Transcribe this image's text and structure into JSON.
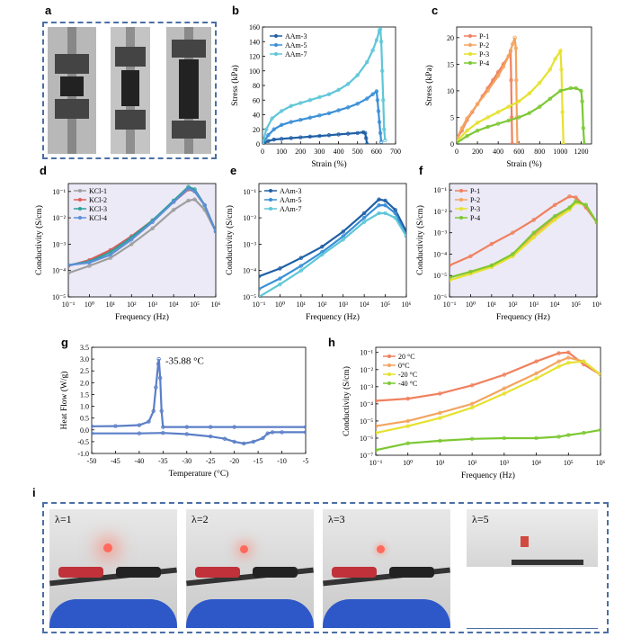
{
  "panel_labels": {
    "a": "a",
    "b": "b",
    "c": "c",
    "d": "d",
    "e": "e",
    "f": "f",
    "g": "g",
    "h": "h",
    "i": "i"
  },
  "photos_i": {
    "labels": [
      "λ=1",
      "λ=2",
      "λ=3",
      "λ=5"
    ]
  },
  "colors": {
    "dash_border": "#4a6fa5"
  },
  "chart_data": [
    {
      "id": "b",
      "type": "line",
      "xlabel": "Strain (%)",
      "ylabel": "Stress (kPa)",
      "xlim": [
        0,
        700
      ],
      "ylim": [
        0,
        160
      ],
      "xticks": [
        0,
        100,
        200,
        300,
        400,
        500,
        600,
        700
      ],
      "yticks": [
        0,
        20,
        40,
        60,
        80,
        100,
        120,
        140,
        160
      ],
      "legend_position": "top-left",
      "series": [
        {
          "name": "AAm-3",
          "color": "#1f5fa6",
          "x": [
            0,
            30,
            60,
            100,
            150,
            200,
            250,
            300,
            350,
            400,
            450,
            500,
            530,
            540,
            545,
            550
          ],
          "y": [
            0,
            4,
            6,
            7,
            8,
            9,
            10,
            11,
            12,
            13,
            14,
            15,
            16,
            15,
            8,
            0
          ]
        },
        {
          "name": "AAm-5",
          "color": "#3a8fd6",
          "x": [
            0,
            30,
            60,
            100,
            150,
            200,
            250,
            300,
            350,
            400,
            450,
            500,
            550,
            580,
            600,
            605,
            610,
            615,
            620,
            625
          ],
          "y": [
            0,
            12,
            20,
            26,
            30,
            33,
            36,
            39,
            42,
            46,
            50,
            55,
            62,
            68,
            72,
            60,
            45,
            30,
            15,
            3
          ]
        },
        {
          "name": "AAm-7",
          "color": "#5ec6d8",
          "x": [
            0,
            20,
            50,
            100,
            150,
            200,
            250,
            300,
            350,
            400,
            450,
            500,
            550,
            580,
            600,
            615,
            620,
            625,
            630,
            635,
            640,
            645
          ],
          "y": [
            0,
            20,
            35,
            45,
            52,
            56,
            60,
            64,
            68,
            74,
            82,
            94,
            112,
            128,
            142,
            155,
            157,
            140,
            100,
            60,
            20,
            5
          ]
        }
      ]
    },
    {
      "id": "c",
      "type": "line",
      "xlabel": "Strain (%)",
      "ylabel": "Stress (kPa)",
      "xlim": [
        0,
        1300
      ],
      "ylim": [
        0,
        22
      ],
      "xticks": [
        0,
        200,
        400,
        600,
        800,
        1000,
        1200
      ],
      "yticks": [
        0,
        5,
        10,
        15,
        20
      ],
      "legend_position": "top-left",
      "series": [
        {
          "name": "P-1",
          "color": "#f0805e",
          "x": [
            0,
            50,
            100,
            150,
            200,
            250,
            300,
            350,
            400,
            450,
            500,
            520,
            525,
            530,
            535
          ],
          "y": [
            1,
            2.5,
            4.5,
            6,
            7.5,
            9,
            10.5,
            12,
            13.5,
            15,
            16.5,
            17.5,
            12,
            5,
            0
          ]
        },
        {
          "name": "P-2",
          "color": "#f4a460",
          "x": [
            0,
            50,
            100,
            200,
            300,
            400,
            450,
            500,
            540,
            560,
            570,
            575,
            580,
            585
          ],
          "y": [
            1,
            3,
            4.8,
            7.5,
            10,
            12.8,
            14.5,
            16.5,
            18.8,
            20,
            18,
            12,
            5,
            0
          ]
        },
        {
          "name": "P-3",
          "color": "#e6e12e",
          "x": [
            0,
            100,
            200,
            300,
            400,
            500,
            600,
            700,
            800,
            900,
            950,
            1000,
            1010,
            1020,
            1030
          ],
          "y": [
            0.5,
            2.5,
            4,
            5,
            6,
            7,
            8,
            9.5,
            11.5,
            14,
            16,
            17.5,
            14,
            6,
            0
          ]
        },
        {
          "name": "P-4",
          "color": "#7cc832",
          "x": [
            0,
            100,
            200,
            300,
            400,
            500,
            600,
            700,
            800,
            900,
            1000,
            1100,
            1150,
            1200,
            1210,
            1220,
            1230
          ],
          "y": [
            0.2,
            1.5,
            2.5,
            3.2,
            3.8,
            4.4,
            5,
            5.8,
            7,
            8.5,
            10,
            10.5,
            10.5,
            10,
            8,
            3,
            0
          ]
        }
      ]
    },
    {
      "id": "d",
      "type": "line",
      "xlabel": "Frequency (Hz)",
      "ylabel": "Conductivity (S/cm)",
      "xscale": "log",
      "yscale": "log",
      "xlim": [
        0.1,
        1000000
      ],
      "ylim": [
        1e-05,
        0.2
      ],
      "xtick_labels": [
        "10⁻¹",
        "10⁰",
        "10¹",
        "10²",
        "10³",
        "10⁴",
        "10⁵",
        "10⁶"
      ],
      "ytick_labels": [
        "10⁻⁵",
        "10⁻⁴",
        "10⁻³",
        "10⁻²",
        "10⁻¹"
      ],
      "legend_position": "top-left",
      "series": [
        {
          "name": "KCl-1",
          "color": "#9e9e9e",
          "x": [
            0.1,
            1,
            10,
            100,
            1000,
            10000,
            50000,
            100000,
            300000,
            1000000
          ],
          "y": [
            8e-05,
            0.00015,
            0.0003,
            0.001,
            0.004,
            0.02,
            0.045,
            0.05,
            0.02,
            0.003
          ]
        },
        {
          "name": "KCl-2",
          "color": "#e05a5a",
          "x": [
            0.1,
            1,
            10,
            100,
            1000,
            10000,
            50000,
            100000,
            300000,
            1000000
          ],
          "y": [
            0.00015,
            0.00025,
            0.0006,
            0.002,
            0.008,
            0.04,
            0.12,
            0.1,
            0.03,
            0.003
          ]
        },
        {
          "name": "KCl-3",
          "color": "#2aa198",
          "x": [
            0.1,
            1,
            10,
            100,
            1000,
            10000,
            50000,
            100000,
            300000,
            1000000
          ],
          "y": [
            0.00016,
            0.00022,
            0.0005,
            0.0018,
            0.008,
            0.045,
            0.15,
            0.12,
            0.03,
            0.003
          ]
        },
        {
          "name": "KCl-4",
          "color": "#5b8fd6",
          "x": [
            0.1,
            1,
            10,
            100,
            1000,
            10000,
            50000,
            100000,
            300000,
            1000000
          ],
          "y": [
            0.00016,
            0.0002,
            0.0004,
            0.0015,
            0.007,
            0.04,
            0.13,
            0.1,
            0.03,
            0.003
          ]
        }
      ]
    },
    {
      "id": "e",
      "type": "line",
      "xlabel": "Frequency (Hz)",
      "ylabel": "Conductivity (S/cm)",
      "xscale": "log",
      "yscale": "log",
      "xlim": [
        0.1,
        1000000
      ],
      "ylim": [
        1e-05,
        0.2
      ],
      "xtick_labels": [
        "10⁻¹",
        "10⁰",
        "10¹",
        "10²",
        "10³",
        "10⁴",
        "10⁵",
        "10⁶"
      ],
      "ytick_labels": [
        "10⁻⁵",
        "10⁻⁴",
        "10⁻³",
        "10⁻²",
        "10⁻¹"
      ],
      "legend_position": "top-left",
      "series": [
        {
          "name": "AAm-3",
          "color": "#1f5fa6",
          "x": [
            0.1,
            1,
            10,
            100,
            1000,
            10000,
            50000,
            100000,
            300000,
            1000000
          ],
          "y": [
            6e-05,
            0.00012,
            0.0003,
            0.0008,
            0.003,
            0.015,
            0.05,
            0.045,
            0.02,
            0.003
          ]
        },
        {
          "name": "AAm-5",
          "color": "#3a8fd6",
          "x": [
            0.1,
            1,
            10,
            100,
            1000,
            10000,
            50000,
            100000,
            300000,
            1000000
          ],
          "y": [
            2e-05,
            5e-05,
            0.00015,
            0.0005,
            0.002,
            0.01,
            0.03,
            0.03,
            0.015,
            0.002
          ]
        },
        {
          "name": "AAm-7",
          "color": "#5ec6d8",
          "x": [
            0.1,
            1,
            10,
            100,
            1000,
            10000,
            50000,
            100000,
            300000,
            1000000
          ],
          "y": [
            1e-05,
            3e-05,
            0.0001,
            0.0004,
            0.0015,
            0.007,
            0.015,
            0.015,
            0.01,
            0.002
          ]
        }
      ]
    },
    {
      "id": "f",
      "type": "line",
      "xlabel": "Frequency (Hz)",
      "ylabel": "Conductivity (S/cm)",
      "xscale": "log",
      "yscale": "log",
      "xlim": [
        0.1,
        1000000
      ],
      "ylim": [
        1e-06,
        0.2
      ],
      "xtick_labels": [
        "10⁻¹",
        "10⁰",
        "10¹",
        "10²",
        "10³",
        "10⁴",
        "10⁵",
        "10⁶"
      ],
      "ytick_labels": [
        "10⁻⁶",
        "10⁻⁵",
        "10⁻⁴",
        "10⁻³",
        "10⁻²",
        "10⁻¹"
      ],
      "legend_position": "top-left",
      "series": [
        {
          "name": "P-1",
          "color": "#f0805e",
          "x": [
            0.1,
            1,
            10,
            100,
            1000,
            10000,
            50000,
            100000,
            300000,
            1000000
          ],
          "y": [
            3e-05,
            8e-05,
            0.0003,
            0.001,
            0.004,
            0.02,
            0.05,
            0.045,
            0.015,
            0.003
          ]
        },
        {
          "name": "P-2",
          "color": "#f4a460",
          "x": [
            0.1,
            1,
            10,
            100,
            1000,
            10000,
            50000,
            100000,
            300000,
            1000000
          ],
          "y": [
            8e-06,
            1.5e-05,
            3e-05,
            0.0001,
            0.0008,
            0.005,
            0.015,
            0.03,
            0.02,
            0.003
          ]
        },
        {
          "name": "P-3",
          "color": "#e6e12e",
          "x": [
            0.1,
            1,
            10,
            100,
            1000,
            10000,
            50000,
            100000,
            300000,
            1000000
          ],
          "y": [
            6e-06,
            1.2e-05,
            2.5e-05,
            8e-05,
            0.0006,
            0.004,
            0.012,
            0.025,
            0.02,
            0.003
          ]
        },
        {
          "name": "P-4",
          "color": "#7cc832",
          "x": [
            0.1,
            1,
            10,
            100,
            1000,
            10000,
            50000,
            100000,
            300000,
            1000000
          ],
          "y": [
            8e-06,
            1.5e-05,
            3e-05,
            0.0001,
            0.001,
            0.006,
            0.015,
            0.03,
            0.02,
            0.003
          ]
        }
      ]
    },
    {
      "id": "g",
      "type": "line",
      "xlabel": "Temperature (°C)",
      "ylabel": "Heat Flow (W/g)",
      "xlim": [
        -50,
        -5
      ],
      "ylim": [
        -1.0,
        3.5
      ],
      "xticks": [
        -50,
        -45,
        -40,
        -35,
        -30,
        -25,
        -20,
        -15,
        -10,
        -5
      ],
      "yticks": [
        -1.0,
        -0.5,
        0.0,
        0.5,
        1.0,
        1.5,
        2.0,
        2.5,
        3.0,
        3.5
      ],
      "annotation": "-35.88 °C",
      "series": [
        {
          "name": "",
          "color": "#5b7fc7",
          "x": [
            -50,
            -45,
            -40,
            -38,
            -37,
            -36.5,
            -36,
            -35.88,
            -35.6,
            -35.3,
            -35,
            -30,
            -25,
            -20,
            -5
          ],
          "y": [
            0.15,
            0.16,
            0.2,
            0.35,
            0.8,
            1.8,
            2.8,
            3.0,
            2.2,
            0.8,
            0.12,
            0.12,
            0.12,
            0.12,
            0.12
          ]
        },
        {
          "name": "",
          "color": "#5b7fc7",
          "x": [
            -50,
            -40,
            -35,
            -30,
            -25,
            -22,
            -20,
            -18,
            -16,
            -14,
            -13,
            -12,
            -10,
            -5
          ],
          "y": [
            -0.15,
            -0.15,
            -0.13,
            -0.18,
            -0.28,
            -0.38,
            -0.5,
            -0.58,
            -0.5,
            -0.35,
            -0.15,
            -0.1,
            -0.1,
            -0.1
          ]
        }
      ]
    },
    {
      "id": "h",
      "type": "line",
      "xlabel": "Frequency (Hz)",
      "ylabel": "Conductivity (S/cm)",
      "xscale": "log",
      "yscale": "log",
      "xlim": [
        0.1,
        1000000
      ],
      "ylim": [
        1e-07,
        0.2
      ],
      "xtick_labels": [
        "10⁻¹",
        "10⁰",
        "10¹",
        "10²",
        "10³",
        "10⁴",
        "10⁵",
        "10⁶"
      ],
      "ytick_labels": [
        "10⁻⁷",
        "10⁻⁶",
        "10⁻⁵",
        "10⁻⁴",
        "10⁻³",
        "10⁻²",
        "10⁻¹"
      ],
      "legend_position": "top-left",
      "series": [
        {
          "name": "20 °C",
          "color": "#f0805e",
          "x": [
            0.1,
            1,
            10,
            100,
            1000,
            10000,
            50000,
            100000,
            300000,
            1000000
          ],
          "y": [
            0.00015,
            0.0002,
            0.0004,
            0.0012,
            0.005,
            0.03,
            0.09,
            0.1,
            0.02,
            0.005
          ]
        },
        {
          "name": "0°C",
          "color": "#f4a460",
          "x": [
            0.1,
            1,
            10,
            100,
            1000,
            10000,
            50000,
            100000,
            300000,
            1000000
          ],
          "y": [
            5e-06,
            1e-05,
            3e-05,
            0.0001,
            0.0008,
            0.006,
            0.03,
            0.05,
            0.03,
            0.005
          ]
        },
        {
          "name": "-20 °C",
          "color": "#e6e12e",
          "x": [
            0.1,
            1,
            10,
            100,
            1000,
            10000,
            50000,
            100000,
            300000,
            1000000
          ],
          "y": [
            2e-06,
            5e-06,
            1.5e-05,
            6e-05,
            0.0004,
            0.003,
            0.015,
            0.025,
            0.03,
            0.005
          ]
        },
        {
          "name": "-40 °C",
          "color": "#7cc832",
          "x": [
            0.1,
            1,
            10,
            100,
            1000,
            10000,
            50000,
            100000,
            300000,
            1000000
          ],
          "y": [
            2e-07,
            5e-07,
            7e-07,
            9e-07,
            1e-06,
            1e-06,
            1.2e-06,
            1.5e-06,
            2e-06,
            3e-06
          ]
        }
      ]
    }
  ]
}
